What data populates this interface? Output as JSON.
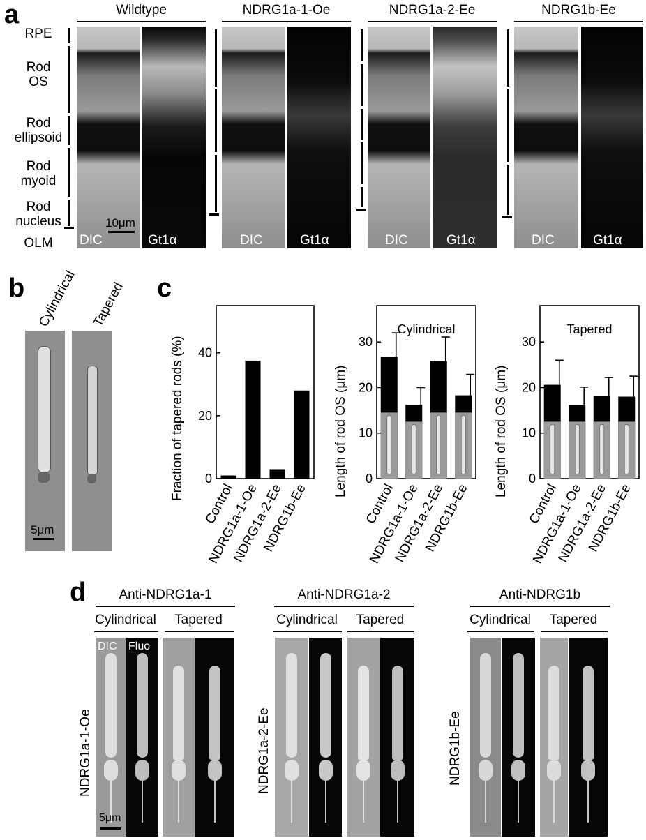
{
  "panel_a": {
    "letter": "a",
    "groups": [
      "Wildtype",
      "NDRG1a-1-Oe",
      "NDRG1a-2-Ee",
      "NDRG1b-Ee"
    ],
    "layers": [
      "RPE",
      "Rod\nOS",
      "Rod\nellipsoid",
      "Rod\nmyoid",
      "Rod\nnucleus",
      "OLM"
    ],
    "dic_label": "DIC",
    "fluor_label": "Gt1α",
    "scale_bar": "10μm"
  },
  "panel_b": {
    "letter": "b",
    "labels": [
      "Cylindrical",
      "Tapered"
    ],
    "scale_bar": "5μm"
  },
  "panel_c": {
    "letter": "c",
    "categories": [
      "Control",
      "NDRG1a-1-Oe",
      "NDRG1a-2-Ee",
      "NDRG1b-Ee"
    ],
    "left_ylabel": "Fraction of tapered rods (%)",
    "os_ylabel": "Length of rod OS (μm)",
    "cyl_title": "Cylindrical",
    "tap_title": "Tapered"
  },
  "panel_d": {
    "letter": "d",
    "antibodies": [
      "Anti-NDRG1a-1",
      "Anti-NDRG1a-2",
      "Anti-NDRG1b"
    ],
    "sub_labels": [
      "Cylindrical",
      "Tapered"
    ],
    "row_labels": [
      "NDRG1a-1-Oe",
      "NDRG1a-2-Ee",
      "NDRG1b-Ee"
    ],
    "dic_label": "DIC",
    "fluo_label": "Fluo",
    "scale_bar": "5μm"
  },
  "chart_data": [
    {
      "type": "bar",
      "categories": [
        "Control",
        "NDRG1a-1-Oe",
        "NDRG1a-2-Ee",
        "NDRG1b-Ee"
      ],
      "values": [
        1,
        37.5,
        3,
        28
      ],
      "title": "",
      "xlabel": "",
      "ylabel": "Fraction of tapered rods (%)",
      "ylim": [
        0,
        55
      ],
      "yticks": [
        0,
        20,
        40
      ]
    },
    {
      "type": "bar",
      "title": "Cylindrical",
      "categories": [
        "Control",
        "NDRG1a-1-Oe",
        "NDRG1a-2-Ee",
        "NDRG1b-Ee"
      ],
      "values": [
        26.8,
        16.2,
        25.8,
        18.3
      ],
      "errors": [
        5.2,
        3.8,
        5.3,
        4.6
      ],
      "ylabel": "Length of rod OS (μm)",
      "ylim": [
        0,
        38
      ],
      "yticks": [
        0,
        10,
        20,
        30
      ]
    },
    {
      "type": "bar",
      "title": "Tapered",
      "categories": [
        "Control",
        "NDRG1a-1-Oe",
        "NDRG1a-2-Ee",
        "NDRG1b-Ee"
      ],
      "values": [
        20.6,
        16.2,
        18.1,
        18.0
      ],
      "errors": [
        5.4,
        3.9,
        4.1,
        4.5
      ],
      "ylabel": "Length of rod OS (μm)",
      "ylim": [
        0,
        38
      ],
      "yticks": [
        0,
        10,
        20,
        30
      ]
    }
  ]
}
